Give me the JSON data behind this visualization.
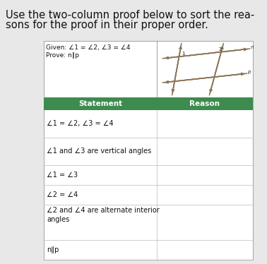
{
  "title_line1": "Use the two-column proof below to sort the rea-",
  "title_line2": "sons for the proof in their proper order.",
  "given_text": "Given: ∠1 = ∠2, ∠3 = ∠4",
  "prove_text": "Prove: n∥p",
  "header_left": "Statement",
  "header_right": "Reason",
  "header_bg": "#3d8b4e",
  "header_fg": "#ffffff",
  "rows": [
    "∠1 = ∠2, ∠3 = ∠4",
    "∠1 and ∠3 are vertical angles",
    "∠1 = ∠3",
    "∠2 = ∠4",
    "∠2 and ∠4 are alternate interior\nangles",
    "n∥p"
  ],
  "fig_bg": "#e8e8e8",
  "title_fontsize": 10.5,
  "cell_fontsize": 7.0,
  "given_fontsize": 6.5
}
